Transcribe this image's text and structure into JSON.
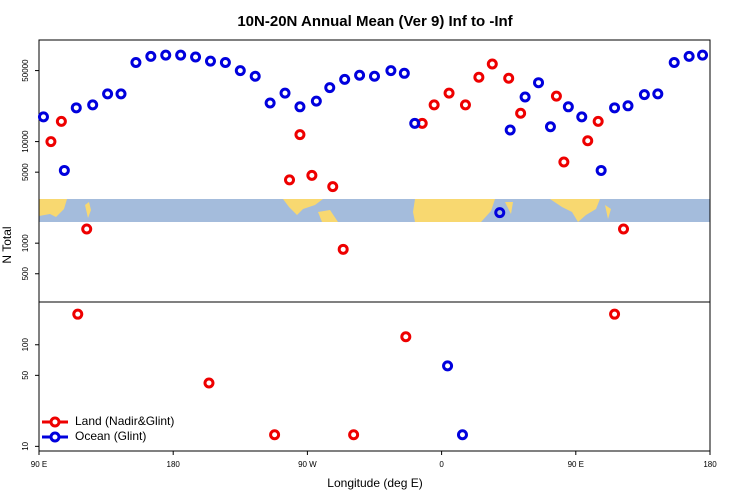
{
  "chart_data": {
    "type": "scatter",
    "title": "10N-20N Annual Mean (Ver 9)   Inf to -Inf",
    "xlabel": "Longitude (deg E)",
    "ylabel": "N Total",
    "xlim": [
      90,
      540
    ],
    "xticks": [
      {
        "value": 90,
        "label": "90 E"
      },
      180,
      {
        "value": 270,
        "label": "90 W"
      },
      {
        "value": 360,
        "label": "0"
      },
      {
        "value": 450,
        "label": "90 E"
      },
      {
        "value": 540,
        "label": "180"
      }
    ],
    "ylim": [
      9,
      100000
    ],
    "ylog": true,
    "yticks": [
      10,
      50,
      100,
      500,
      1000,
      5000,
      10000,
      50000
    ],
    "legend": "lower left",
    "series": [
      {
        "name": "Land (Nadir&Glint)",
        "color": "#ee0000",
        "x": [
          98,
          105,
          116,
          122,
          204,
          248,
          258,
          265,
          273,
          287,
          294,
          301,
          336,
          347,
          355,
          365,
          376,
          385,
          394,
          405,
          413,
          437,
          442,
          458,
          465,
          476,
          482
        ],
        "values": [
          10000,
          15800,
          200,
          1380,
          42,
          13,
          4200,
          11700,
          4650,
          3600,
          870,
          13,
          120,
          15100,
          23000,
          30000,
          23000,
          43000,
          58000,
          42000,
          19000,
          28000,
          6300,
          10200,
          15800,
          200,
          1380
        ]
      },
      {
        "name": "Ocean (Glint)",
        "color": "#0000dd",
        "x": [
          93,
          107,
          115,
          126,
          136,
          145,
          155,
          165,
          175,
          185,
          195,
          205,
          215,
          225,
          235,
          245,
          255,
          265,
          276,
          285,
          295,
          305,
          315,
          326,
          335,
          342,
          364,
          374,
          399,
          406,
          416,
          425,
          433,
          445,
          454,
          467,
          476,
          485,
          496,
          505,
          516,
          526,
          535
        ],
        "values": [
          17500,
          5200,
          21500,
          23000,
          29500,
          29500,
          60000,
          69000,
          71000,
          71000,
          68000,
          62000,
          60000,
          50000,
          44000,
          24000,
          30000,
          22000,
          25000,
          34000,
          41000,
          45000,
          44000,
          50000,
          47000,
          15100,
          62,
          13,
          2000,
          13000,
          27500,
          38000,
          14000,
          22000,
          17500,
          5200,
          21500,
          22500,
          29000,
          29500,
          60000,
          69000,
          71000
        ]
      }
    ]
  }
}
